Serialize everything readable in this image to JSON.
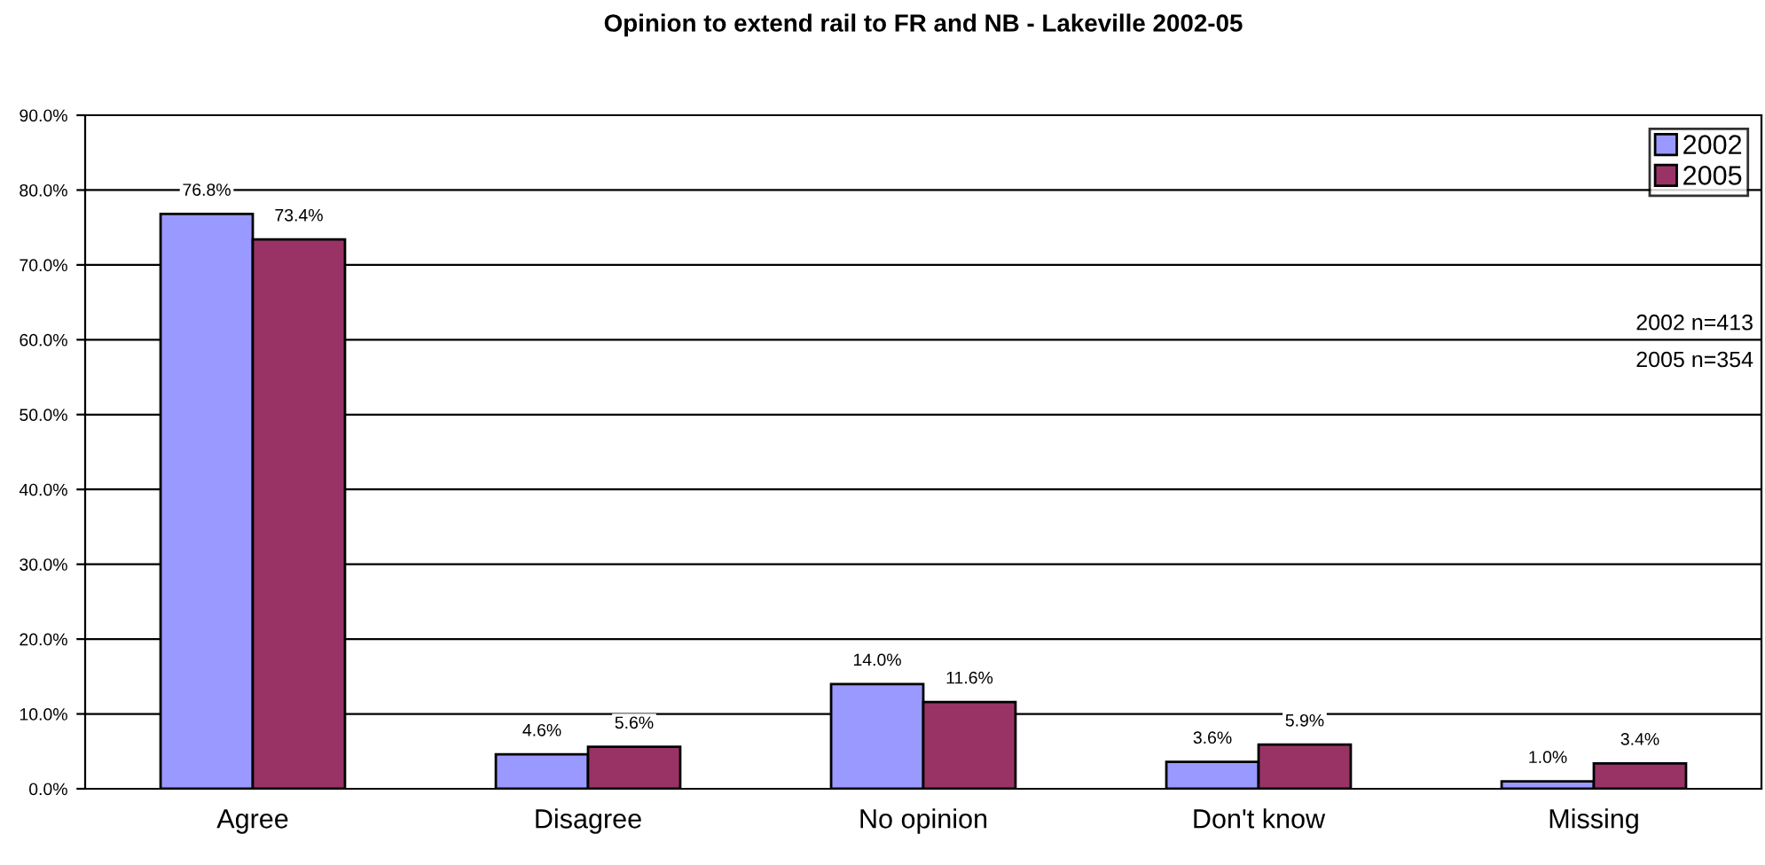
{
  "chart_data": {
    "type": "bar",
    "title": "Opinion to extend rail to FR and NB - Lakeville 2002-05",
    "categories": [
      "Agree",
      "Disagree",
      "No opinion",
      "Don't know",
      "Missing"
    ],
    "series": [
      {
        "name": "2002",
        "color": "#9999ff",
        "values": [
          76.8,
          4.6,
          14.0,
          3.6,
          1.0
        ],
        "value_labels": [
          "76.8%",
          "4.6%",
          "14.0%",
          "3.6%",
          "1.0%"
        ]
      },
      {
        "name": "2005",
        "color": "#993366",
        "values": [
          73.4,
          5.6,
          11.6,
          5.9,
          3.4
        ],
        "value_labels": [
          "73.4%",
          "5.6%",
          "11.6%",
          "5.9%",
          "3.4%"
        ]
      }
    ],
    "ylim": [
      0,
      90
    ],
    "yticks": [
      {
        "value": 0,
        "label": "0.0%"
      },
      {
        "value": 10,
        "label": "10.0%"
      },
      {
        "value": 20,
        "label": "20.0%"
      },
      {
        "value": 30,
        "label": "30.0%"
      },
      {
        "value": 40,
        "label": "40.0%"
      },
      {
        "value": 50,
        "label": "50.0%"
      },
      {
        "value": 60,
        "label": "60.0%"
      },
      {
        "value": 70,
        "label": "70.0%"
      },
      {
        "value": 80,
        "label": "80.0%"
      },
      {
        "value": 90,
        "label": "90.0%"
      }
    ],
    "grid": "y",
    "legend": "top right",
    "annotations": [
      "2002 n=413",
      "2005 n=354"
    ]
  }
}
